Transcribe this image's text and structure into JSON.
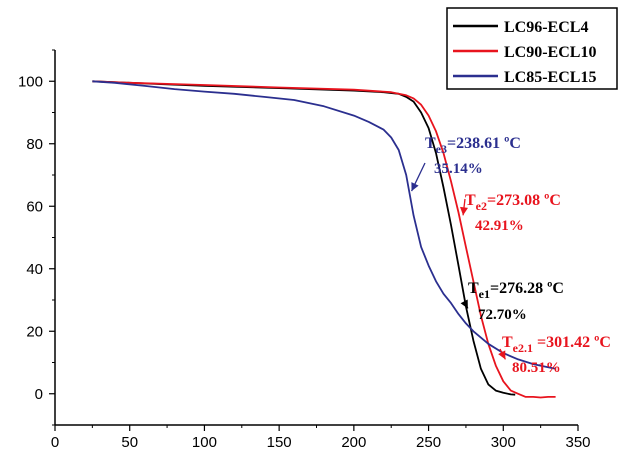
{
  "chart_data": {
    "type": "line",
    "title": "",
    "xlabel": "",
    "ylabel": "",
    "xlim": [
      0,
      350
    ],
    "ylim": [
      -10,
      110
    ],
    "x_ticks": [
      0,
      50,
      100,
      150,
      200,
      250,
      300,
      350
    ],
    "y_ticks": [
      0,
      20,
      40,
      60,
      80,
      100
    ],
    "grid": false,
    "legend_position": "top-right",
    "series": [
      {
        "name": "LC96-ECL4",
        "color": "#000000",
        "x": [
          25,
          50,
          100,
          150,
          200,
          220,
          230,
          235,
          240,
          245,
          250,
          255,
          260,
          265,
          270,
          275,
          280,
          285,
          290,
          295,
          300,
          305,
          308
        ],
        "y": [
          100,
          99.5,
          98.5,
          97.8,
          97,
          96.5,
          96,
          95,
          93.5,
          90,
          85,
          77,
          66,
          54,
          41,
          28,
          17,
          8,
          3,
          1,
          0.3,
          -0.2,
          -0.3
        ]
      },
      {
        "name": "LC90-ECL10",
        "color": "#e8141e",
        "x": [
          25,
          50,
          100,
          150,
          200,
          225,
          235,
          240,
          245,
          250,
          255,
          260,
          265,
          270,
          275,
          280,
          285,
          290,
          295,
          300,
          305,
          310,
          315,
          320,
          325,
          330,
          335
        ],
        "y": [
          100,
          99.5,
          98.8,
          98,
          97.3,
          96.5,
          95.5,
          94.5,
          92.5,
          89,
          84,
          77,
          68,
          58,
          47,
          36,
          25,
          16,
          9,
          4,
          1,
          0,
          -1,
          -1,
          -1.2,
          -1,
          -1
        ]
      },
      {
        "name": "LC85-ECL15",
        "color": "#2b2f8f",
        "x": [
          25,
          40,
          60,
          80,
          100,
          120,
          140,
          160,
          180,
          200,
          210,
          220,
          225,
          230,
          235,
          240,
          245,
          250,
          255,
          260,
          265,
          270,
          275,
          280,
          290,
          300,
          310,
          320,
          330,
          335
        ],
        "y": [
          100,
          99.5,
          98.5,
          97.5,
          96.7,
          96,
          95,
          94,
          92,
          89,
          87,
          84.5,
          82,
          78,
          70,
          57,
          47,
          41,
          36,
          32,
          29,
          25.5,
          22.5,
          20,
          16,
          13,
          11,
          9.5,
          8.5,
          8
        ]
      }
    ],
    "annotations": [
      {
        "label": "T",
        "subscript": "e3",
        "value": "=238.61 ºC",
        "percent": "35.14%",
        "color": "#2b2f8f",
        "arrow_target": [
          238.61,
          64.86
        ]
      },
      {
        "label": "T",
        "subscript": "e2",
        "value": "=273.08 ºC",
        "percent": "42.91%",
        "color": "#e8141e",
        "arrow_target": [
          273.08,
          57.09
        ]
      },
      {
        "label": "T",
        "subscript": "e1",
        "value": "=276.28 ºC",
        "percent": "72.70%",
        "color": "#000000",
        "arrow_target": [
          276.28,
          27.3
        ]
      },
      {
        "label": "T",
        "subscript": "e2.1",
        "value": " =301.42 ºC",
        "percent": "80.51%",
        "color": "#e8141e",
        "arrow_target": [
          301.42,
          11
        ]
      }
    ]
  }
}
